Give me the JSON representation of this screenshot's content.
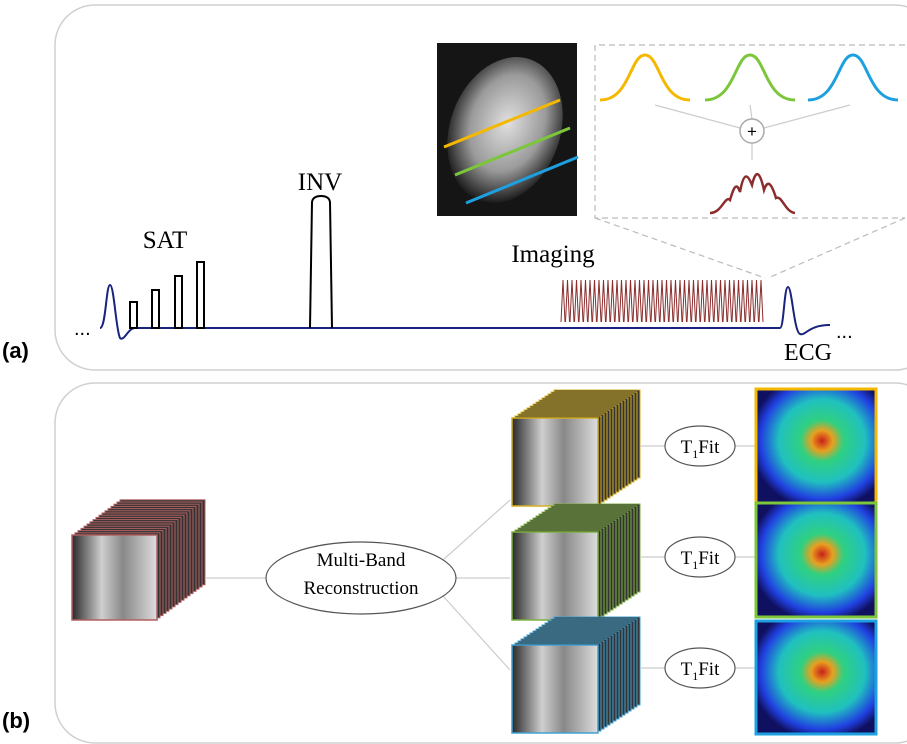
{
  "panel_a": {
    "label": "(a)",
    "sat": "SAT",
    "inv": "INV",
    "imaging": "Imaging",
    "ecg": "ECG",
    "ellipsis_left": "...",
    "ellipsis_right": "...",
    "sum": "+"
  },
  "panel_b": {
    "label": "(b)",
    "reconstruction": [
      "Multi-Band",
      "Reconstruction"
    ],
    "fits": [
      {
        "symbol": "T",
        "subscript": "1",
        "suffix": "Fit"
      },
      {
        "symbol": "T",
        "subscript": "1",
        "suffix": "Fit"
      },
      {
        "symbol": "T",
        "subscript": "1",
        "suffix": "Fit"
      }
    ]
  }
}
